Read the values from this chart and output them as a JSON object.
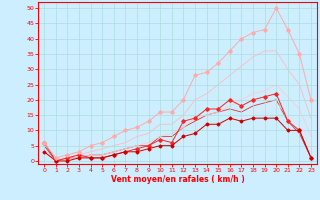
{
  "xlabel": "Vent moyen/en rafales ( km/h )",
  "background_color": "#cceeff",
  "grid_color": "#aadddd",
  "axis_color": "#ff0000",
  "x_ticks": [
    0,
    1,
    2,
    3,
    4,
    5,
    6,
    7,
    8,
    9,
    10,
    11,
    12,
    13,
    14,
    15,
    16,
    17,
    18,
    19,
    20,
    21,
    22,
    23
  ],
  "y_ticks": [
    0,
    5,
    10,
    15,
    20,
    25,
    30,
    35,
    40,
    45,
    50
  ],
  "xlim": [
    -0.5,
    23.5
  ],
  "ylim": [
    -1,
    52
  ],
  "series": [
    {
      "x": [
        0,
        1,
        2,
        3,
        4,
        5,
        6,
        7,
        8,
        9,
        10,
        11,
        12,
        13,
        14,
        15,
        16,
        17,
        18,
        19,
        20,
        21,
        22,
        23
      ],
      "y": [
        6,
        0,
        1,
        2,
        1,
        1,
        2,
        3,
        4,
        5,
        7,
        6,
        13,
        14,
        17,
        17,
        20,
        18,
        20,
        21,
        22,
        13,
        10,
        1
      ],
      "color": "#ff2222",
      "marker": "D",
      "markersize": 1.8,
      "linewidth": 0.7
    },
    {
      "x": [
        0,
        1,
        2,
        3,
        4,
        5,
        6,
        7,
        8,
        9,
        10,
        11,
        12,
        13,
        14,
        15,
        16,
        17,
        18,
        19,
        20,
        21,
        22,
        23
      ],
      "y": [
        3,
        0,
        0,
        1,
        1,
        1,
        2,
        3,
        3,
        4,
        5,
        5,
        8,
        9,
        12,
        12,
        14,
        13,
        14,
        14,
        14,
        10,
        10,
        1
      ],
      "color": "#cc0000",
      "marker": "D",
      "markersize": 1.5,
      "linewidth": 0.7
    },
    {
      "x": [
        0,
        1,
        2,
        3,
        4,
        5,
        6,
        7,
        8,
        9,
        10,
        11,
        12,
        13,
        14,
        15,
        16,
        17,
        18,
        19,
        20,
        21,
        22,
        23
      ],
      "y": [
        5,
        0,
        1,
        1,
        2,
        2,
        3,
        4,
        5,
        5,
        8,
        8,
        11,
        13,
        15,
        16,
        17,
        16,
        18,
        19,
        20,
        13,
        9,
        1
      ],
      "color": "#dd3333",
      "marker": null,
      "markersize": 0,
      "linewidth": 0.6
    },
    {
      "x": [
        0,
        1,
        2,
        3,
        4,
        5,
        6,
        7,
        8,
        9,
        10,
        11,
        12,
        13,
        14,
        15,
        16,
        17,
        18,
        19,
        20,
        21,
        22,
        23
      ],
      "y": [
        6,
        1,
        2,
        3,
        5,
        6,
        8,
        10,
        11,
        13,
        16,
        16,
        20,
        28,
        29,
        32,
        36,
        40,
        42,
        43,
        50,
        43,
        35,
        20
      ],
      "color": "#ffaaaa",
      "marker": "D",
      "markersize": 1.8,
      "linewidth": 0.7
    },
    {
      "x": [
        0,
        1,
        2,
        3,
        4,
        5,
        6,
        7,
        8,
        9,
        10,
        11,
        12,
        13,
        14,
        15,
        16,
        17,
        18,
        19,
        20,
        21,
        22,
        23
      ],
      "y": [
        3,
        0,
        1,
        2,
        3,
        4,
        5,
        6,
        8,
        9,
        12,
        12,
        15,
        20,
        22,
        25,
        28,
        31,
        34,
        36,
        36,
        30,
        25,
        14
      ],
      "color": "#ffbbbb",
      "marker": null,
      "markersize": 0,
      "linewidth": 0.6
    },
    {
      "x": [
        0,
        1,
        2,
        3,
        4,
        5,
        6,
        7,
        8,
        9,
        10,
        11,
        12,
        13,
        14,
        15,
        16,
        17,
        18,
        19,
        20,
        21,
        22,
        23
      ],
      "y": [
        3,
        0,
        1,
        1,
        2,
        2,
        3,
        4,
        5,
        6,
        8,
        9,
        11,
        14,
        15,
        16,
        18,
        20,
        22,
        23,
        25,
        21,
        17,
        8
      ],
      "color": "#ffcccc",
      "marker": null,
      "markersize": 0,
      "linewidth": 0.6
    },
    {
      "x": [
        0,
        1,
        2,
        3,
        4,
        5,
        6,
        7,
        8,
        9,
        10,
        11,
        12,
        13,
        14,
        15,
        16,
        17,
        18,
        19,
        20,
        21,
        22,
        23
      ],
      "y": [
        2,
        0,
        0,
        1,
        1,
        1,
        1,
        2,
        3,
        3,
        5,
        5,
        7,
        10,
        11,
        12,
        13,
        14,
        16,
        17,
        19,
        15,
        12,
        5
      ],
      "color": "#ffdddd",
      "marker": null,
      "markersize": 0,
      "linewidth": 0.6
    }
  ]
}
